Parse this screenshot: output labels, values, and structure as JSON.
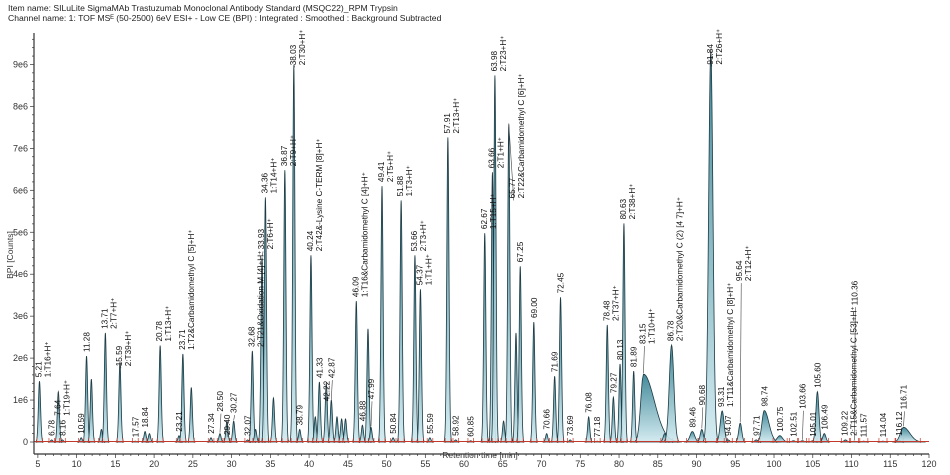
{
  "header": {
    "item_name": "Item name: SILuLite SigmaMAb Trastuzumab Monoclonal Antibody Standard (MSQC22)_RPM Trypsin",
    "channel_name": "Channel name: 1: TOF MSᴱ (50-2500) 6eV ESI+ - Low CE (BPI) : Integrated : Smoothed : Background Subtracted"
  },
  "chart_data": {
    "type": "area",
    "xlabel": "Retention time [min]",
    "ylabel": "BPI [Counts]",
    "xlim": [
      4.5,
      120
    ],
    "ylim": [
      0,
      9750000
    ],
    "x_ticks": [
      5,
      10,
      15,
      20,
      25,
      30,
      35,
      40,
      45,
      50,
      55,
      60,
      65,
      70,
      75,
      80,
      85,
      90,
      95,
      100,
      105,
      110,
      115,
      120
    ],
    "y_ticks": [
      {
        "v": 0,
        "label": "0"
      },
      {
        "v": 1000000,
        "label": "1e6"
      },
      {
        "v": 2000000,
        "label": "2e6"
      },
      {
        "v": 3000000,
        "label": "3e6"
      },
      {
        "v": 4000000,
        "label": "4e6"
      },
      {
        "v": 5000000,
        "label": "5e6"
      },
      {
        "v": 6000000,
        "label": "6e6"
      },
      {
        "v": 7000000,
        "label": "7e6"
      },
      {
        "v": 8000000,
        "label": "8e6"
      },
      {
        "v": 9000000,
        "label": "9e6"
      }
    ],
    "colors": {
      "fill_light": "#cfe9ef",
      "fill_dark": "#2f7d8f",
      "trace": "#1c3a43",
      "baseline": "#c0392b"
    },
    "peaks": [
      {
        "rt": 5.21,
        "h": 1450000,
        "label": "5.21",
        "ann": "1:T16+H⁺"
      },
      {
        "rt": 6.78,
        "h": 50000,
        "label": "6.78"
      },
      {
        "rt": 7.64,
        "h": 1200000,
        "label": "7.64",
        "ann": "1:T19+H⁺"
      },
      {
        "rt": 8.16,
        "h": 50000,
        "label": "8.16"
      },
      {
        "rt": 10.59,
        "h": 100000,
        "label": "10.59"
      },
      {
        "rt": 11.28,
        "h": 2050000,
        "label": "11.28"
      },
      {
        "rt": 11.9,
        "h": 1500000
      },
      {
        "rt": 13.2,
        "h": 300000
      },
      {
        "rt": 13.71,
        "h": 2600000,
        "label": "13.71",
        "ann": "2:T7+H⁺"
      },
      {
        "rt": 15.59,
        "h": 1900000,
        "label": "15.59",
        "ann": "2:T39+H⁺"
      },
      {
        "rt": 17.57,
        "h": 20000,
        "label": "17.57"
      },
      {
        "rt": 18.84,
        "h": 250000,
        "label": "18.84"
      },
      {
        "rt": 19.4,
        "h": 200000
      },
      {
        "rt": 20.78,
        "h": 2300000,
        "label": "20.78",
        "ann": "1:T13+H⁺"
      },
      {
        "rt": 23.21,
        "h": 150000,
        "label": "23.21"
      },
      {
        "rt": 23.71,
        "h": 2100000,
        "label": "23.71",
        "ann": "1:T2&Carbamidomethyl C [5]+H⁺"
      },
      {
        "rt": 24.8,
        "h": 1300000
      },
      {
        "rt": 27.34,
        "h": 100000,
        "label": "27.34"
      },
      {
        "rt": 28.5,
        "h": 200000,
        "label": "28.50"
      },
      {
        "rt": 29.4,
        "h": 500000,
        "label": "29.40"
      },
      {
        "rt": 30.27,
        "h": 500000,
        "label": "30.27"
      },
      {
        "rt": 32.07,
        "h": 50000,
        "label": "32.07"
      },
      {
        "rt": 32.68,
        "h": 2170000,
        "label": "32.68",
        "ann": "2:T21&Oxidation M [4]+H⁺"
      },
      {
        "rt": 33.1,
        "h": 300000
      },
      {
        "rt": 33.93,
        "h": 4400000,
        "label": "33.93",
        "ann": "2:T6+H⁺"
      },
      {
        "rt": 34.36,
        "h": 5830000,
        "label": "34.36",
        "ann": "1:T14+H⁺"
      },
      {
        "rt": 35.4,
        "h": 1050000
      },
      {
        "rt": 36.87,
        "h": 6480000,
        "label": "36.87",
        "ann": "2:T9+H⁺"
      },
      {
        "rt": 38.03,
        "h": 8980000,
        "label": "38.03",
        "ann": "2:T30+H⁺"
      },
      {
        "rt": 38.79,
        "h": 300000,
        "label": "38.79"
      },
      {
        "rt": 40.24,
        "h": 4450000,
        "label": "40.24",
        "ann": "2:T42&-Lysine C-TERM [8]+H⁺"
      },
      {
        "rt": 40.8,
        "h": 600000
      },
      {
        "rt": 41.33,
        "h": 1430000,
        "label": "41.33"
      },
      {
        "rt": 42.22,
        "h": 1400000,
        "label": "42.22"
      },
      {
        "rt": 42.87,
        "h": 1000000,
        "label": "42.87"
      },
      {
        "rt": 43.6,
        "h": 600000
      },
      {
        "rt": 44.2,
        "h": 550000
      },
      {
        "rt": 44.7,
        "h": 550000
      },
      {
        "rt": 46.09,
        "h": 3360000,
        "label": "46.09",
        "ann": "1:T16&Carbamidomethyl C [4]+H⁺"
      },
      {
        "rt": 46.88,
        "h": 400000,
        "label": "46.88"
      },
      {
        "rt": 47.6,
        "h": 2700000
      },
      {
        "rt": 47.99,
        "h": 350000,
        "label": "47.99"
      },
      {
        "rt": 49.41,
        "h": 6100000,
        "label": "49.41",
        "ann": "2:T5+H⁺"
      },
      {
        "rt": 50.84,
        "h": 100000,
        "label": "50.84"
      },
      {
        "rt": 51.88,
        "h": 5760000,
        "label": "51.88",
        "ann": "1:T3+H⁺"
      },
      {
        "rt": 53.66,
        "h": 4450000,
        "label": "53.66",
        "ann": "2:T3+H⁺"
      },
      {
        "rt": 54.37,
        "h": 3640000,
        "label": "54.37",
        "ann": "1:T1+H⁺"
      },
      {
        "rt": 55.59,
        "h": 100000,
        "label": "55.59"
      },
      {
        "rt": 57.91,
        "h": 7260000,
        "label": "57.91",
        "ann": "2:T13+H⁺"
      },
      {
        "rt": 58.92,
        "h": 50000,
        "label": "58.92"
      },
      {
        "rt": 60.85,
        "h": 30000,
        "label": "60.85"
      },
      {
        "rt": 62.67,
        "h": 4980000,
        "label": "62.67",
        "ann": "1:T15+H⁺"
      },
      {
        "rt": 63.66,
        "h": 6430000,
        "label": "63.66",
        "ann": "2:T1+H⁺"
      },
      {
        "rt": 63.98,
        "h": 8740000,
        "label": "63.98",
        "ann": "2:T23+H⁺"
      },
      {
        "rt": 65.1,
        "h": 500000
      },
      {
        "rt": 65.77,
        "h": 7570000,
        "label": "65.77",
        "ann": "2:T22&Carbamidomethyl C [6]+H⁺"
      },
      {
        "rt": 66.7,
        "h": 2600000
      },
      {
        "rt": 67.25,
        "h": 4190000,
        "label": "67.25"
      },
      {
        "rt": 69.0,
        "h": 2860000,
        "label": "69.00"
      },
      {
        "rt": 70.66,
        "h": 200000,
        "label": "70.66"
      },
      {
        "rt": 71.69,
        "h": 1570000,
        "label": "71.69"
      },
      {
        "rt": 72.45,
        "h": 3450000,
        "label": "72.45"
      },
      {
        "rt": 73.69,
        "h": 50000,
        "label": "73.69"
      },
      {
        "rt": 76.08,
        "h": 600000,
        "label": "76.08"
      },
      {
        "rt": 77.18,
        "h": 20000,
        "label": "77.18"
      },
      {
        "rt": 78.48,
        "h": 2790000,
        "label": "78.48",
        "ann": "2:T37+H⁺"
      },
      {
        "rt": 79.27,
        "h": 1070000,
        "label": "79.27"
      },
      {
        "rt": 80.13,
        "h": 1860000,
        "label": "80.13"
      },
      {
        "rt": 80.63,
        "h": 5210000,
        "label": "80.63",
        "ann": "2:T38+H⁺"
      },
      {
        "rt": 81.89,
        "h": 1690000,
        "label": "81.89"
      },
      {
        "rt": 83.15,
        "h": 1620000,
        "label": "83.15",
        "ann": "1:T10+H⁺",
        "w": 0.35,
        "wr": 1.4
      },
      {
        "rt": 85.9,
        "h": 200000
      },
      {
        "rt": 86.78,
        "h": 2310000,
        "label": "86.78",
        "ann": "2:T20&Carbamidomethyl C (2) [4 7]+H⁺",
        "w": 0.3
      },
      {
        "rt": 89.46,
        "h": 250000,
        "label": "89.46",
        "w": 0.3
      },
      {
        "rt": 90.68,
        "h": 300000,
        "label": "90.68"
      },
      {
        "rt": 91.84,
        "h": 9330000,
        "label": "91.84",
        "ann": "2:T26+H⁺",
        "w": 0.28
      },
      {
        "rt": 93.31,
        "h": 740000,
        "label": "93.31",
        "ann": "1:T11&Carbamidomethyl C [8]+H⁺",
        "w": 0.25
      },
      {
        "rt": 94.07,
        "h": 50000,
        "label": "94.07"
      },
      {
        "rt": 95.64,
        "h": 450000,
        "label": "95.64",
        "ann": "2:T12+H⁺"
      },
      {
        "rt": 97.71,
        "h": 50000,
        "label": "97.71"
      },
      {
        "rt": 98.74,
        "h": 750000,
        "label": "98.74",
        "w": 0.3,
        "wr": 0.6
      },
      {
        "rt": 100.75,
        "h": 150000,
        "label": "100.75",
        "w": 0.35
      },
      {
        "rt": 102.51,
        "h": 30000,
        "label": "102.51"
      },
      {
        "rt": 103.66,
        "h": 30000,
        "label": "103.66"
      },
      {
        "rt": 105.01,
        "h": 30000,
        "label": "105.01"
      },
      {
        "rt": 105.6,
        "h": 1200000,
        "label": "105.60"
      },
      {
        "rt": 106.49,
        "h": 200000,
        "label": "106.49"
      },
      {
        "rt": 109.22,
        "h": 50000,
        "label": "109.22",
        "ann": "2:T15&Carbamidomethyl C [53]+H⁺"
      },
      {
        "rt": 110.36,
        "h": 20000,
        "label": "110.36"
      },
      {
        "rt": 111.57,
        "h": 20000,
        "label": "111.57"
      },
      {
        "rt": 114.04,
        "h": 20000,
        "label": "114.04"
      },
      {
        "rt": 116.12,
        "h": 50000,
        "label": "116.12"
      },
      {
        "rt": 116.71,
        "h": 350000,
        "label": "116.71",
        "w": 0.4,
        "wr": 0.8
      }
    ]
  }
}
